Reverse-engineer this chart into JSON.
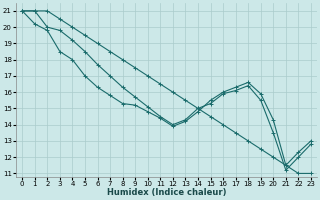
{
  "xlabel": "Humidex (Indice chaleur)",
  "xlim": [
    -0.5,
    23.5
  ],
  "ylim": [
    10.8,
    21.5
  ],
  "yticks": [
    11,
    12,
    13,
    14,
    15,
    16,
    17,
    18,
    19,
    20,
    21
  ],
  "xticks": [
    0,
    1,
    2,
    3,
    4,
    5,
    6,
    7,
    8,
    9,
    10,
    11,
    12,
    13,
    14,
    15,
    16,
    17,
    18,
    19,
    20,
    21,
    22,
    23
  ],
  "background_color": "#cce8e8",
  "grid_color": "#aacccc",
  "line_color": "#1a6b6b",
  "series": [
    [
      21,
      21,
      20,
      19.8,
      19.2,
      18.5,
      17.7,
      17.0,
      16.3,
      15.7,
      15.1,
      14.5,
      14.0,
      14.3,
      15.0,
      15.3,
      15.9,
      16.1,
      16.4,
      15.5,
      13.5,
      11.2,
      12.0,
      12.8
    ],
    [
      21,
      20.2,
      19.8,
      18.5,
      18.0,
      17.0,
      16.3,
      15.8,
      15.3,
      15.2,
      14.8,
      14.4,
      13.9,
      14.2,
      14.8,
      15.5,
      16.0,
      16.3,
      16.6,
      15.9,
      14.3,
      11.5,
      12.3,
      13.0
    ],
    [
      21,
      21,
      21,
      20.5,
      20,
      19.5,
      19,
      18.5,
      18,
      17.5,
      17,
      16.5,
      16,
      15.5,
      15,
      14.5,
      14,
      13.5,
      13,
      12.5,
      12,
      11.5,
      11,
      11
    ]
  ],
  "marker": "+",
  "markersize": 3,
  "linewidth": 0.8,
  "figsize": [
    3.2,
    2.0
  ],
  "dpi": 100,
  "xlabel_fontsize": 6,
  "tick_fontsize": 5,
  "xlabel_color": "#1a4a4a",
  "spine_color": "#888888"
}
